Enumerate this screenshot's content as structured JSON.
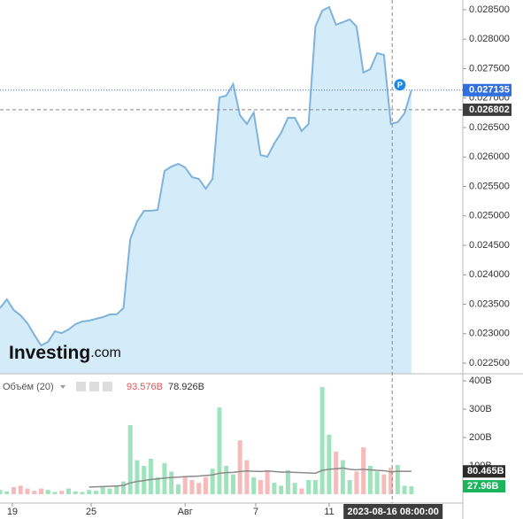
{
  "chart_data": [
    {
      "type": "area",
      "x": [
        0,
        1,
        2,
        3,
        4,
        5,
        6,
        7,
        8,
        9,
        10,
        11,
        12,
        13,
        14,
        15,
        16,
        17,
        18,
        19,
        20,
        21,
        22,
        23,
        24,
        25,
        26,
        27,
        28,
        29,
        30,
        31,
        32,
        33,
        34,
        35,
        36,
        37,
        38,
        39,
        40,
        41,
        42,
        43,
        44,
        45,
        46,
        47,
        48,
        49,
        50,
        51,
        52,
        53,
        54,
        55,
        56,
        57,
        58,
        59,
        60
      ],
      "values": [
        0.023432,
        0.023583,
        0.023402,
        0.023312,
        0.023177,
        0.022981,
        0.022801,
        0.022861,
        0.023041,
        0.023011,
        0.023071,
        0.023162,
        0.023207,
        0.023222,
        0.023252,
        0.023282,
        0.023327,
        0.023327,
        0.023432,
        0.024605,
        0.024906,
        0.025086,
        0.025086,
        0.025101,
        0.025763,
        0.025838,
        0.025883,
        0.025823,
        0.025658,
        0.025628,
        0.025462,
        0.025628,
        0.027011,
        0.027041,
        0.027237,
        0.02671,
        0.02656,
        0.026756,
        0.026034,
        0.026004,
        0.026229,
        0.02641,
        0.026665,
        0.026665,
        0.02644,
        0.02656,
        0.028214,
        0.028485,
        0.028545,
        0.028244,
        0.028289,
        0.028335,
        0.028214,
        0.027432,
        0.027492,
        0.027763,
        0.027733,
        0.02656,
        0.02659,
        0.026741,
        0.027135
      ],
      "value_labels": [
        null,
        null,
        null,
        null,
        null,
        null,
        null,
        null,
        null,
        null,
        null,
        null,
        null,
        null,
        null,
        null,
        null,
        null,
        null,
        null,
        null,
        null,
        null,
        null,
        null,
        null,
        null,
        null,
        null,
        null,
        null,
        null,
        null,
        null,
        null,
        null,
        null,
        null,
        null,
        null,
        null,
        null,
        null,
        null,
        null,
        null,
        null,
        null,
        null,
        null,
        null,
        null,
        null,
        null,
        null,
        null,
        null,
        null,
        null,
        null,
        "0.027135"
      ],
      "color": "#7fb3dc",
      "fill": "#d4ebf9",
      "label_color": "#2f6fe0",
      "xlim": [
        0,
        67.5
      ],
      "ylim": [
        0.02232,
        0.028665
      ],
      "yticks": [
        {
          "value": 0.0225,
          "label": "0.022500"
        },
        {
          "value": 0.023,
          "label": "0.023000"
        },
        {
          "value": 0.0235,
          "label": "0.023500"
        },
        {
          "value": 0.024,
          "label": "0.024000"
        },
        {
          "value": 0.0245,
          "label": "0.024500"
        },
        {
          "value": 0.025,
          "label": "0.025000"
        },
        {
          "value": 0.0255,
          "label": "0.025500"
        },
        {
          "value": 0.026,
          "label": "0.026000"
        },
        {
          "value": 0.0265,
          "label": "0.026500"
        },
        {
          "value": 0.027,
          "label": "0.027000"
        },
        {
          "value": 0.0275,
          "label": "0.027500"
        },
        {
          "value": 0.028,
          "label": "0.028000"
        },
        {
          "value": 0.0285,
          "label": "0.028500"
        }
      ],
      "xticks": [
        {
          "value": 1.8,
          "label": "19"
        },
        {
          "value": 13.3,
          "label": "25"
        },
        {
          "value": 27,
          "label": "Авг"
        },
        {
          "value": 37.3,
          "label": "7"
        },
        {
          "value": 48,
          "label": "11"
        }
      ],
      "crosshair": {
        "x": {
          "value": 57.2,
          "label": "2023-08-16 08:00:00"
        },
        "y": {
          "value": 0.026802,
          "label": "0.026802"
        }
      },
      "watermark": {
        "brand": "Investing",
        "suffix": ".com"
      },
      "marker": "P",
      "grid": false
    },
    {
      "type": "bar",
      "title": "Объём (20)",
      "ylim": [
        0,
        425
      ],
      "yticks": [
        {
          "value": 100,
          "label": "100B"
        },
        {
          "value": 200,
          "label": "200B"
        },
        {
          "value": 300,
          "label": "300B"
        },
        {
          "value": 400,
          "label": "400B"
        }
      ],
      "series": [
        {
          "type": "bar",
          "up_color": "#9fe3bd",
          "down_color": "#f7baba",
          "legend_color": "#e05555",
          "values": [
            15,
            10,
            25,
            30,
            20,
            12,
            20,
            15,
            8,
            12,
            20,
            10,
            8,
            15,
            12,
            25,
            20,
            30,
            45,
            244,
            120,
            100,
            125,
            60,
            110,
            80,
            35,
            60,
            50,
            40,
            60,
            90,
            306,
            100,
            70,
            190,
            120,
            60,
            50,
            85,
            40,
            30,
            85,
            40,
            20,
            50,
            50,
            378,
            210,
            150,
            120,
            50,
            80,
            165,
            100,
            80,
            70,
            93.576,
            103,
            30,
            27.96
          ],
          "value_labels": [
            null,
            null,
            null,
            null,
            null,
            null,
            null,
            null,
            null,
            null,
            null,
            null,
            null,
            null,
            null,
            null,
            null,
            null,
            null,
            null,
            null,
            null,
            null,
            null,
            null,
            null,
            null,
            null,
            null,
            null,
            null,
            null,
            null,
            null,
            null,
            null,
            null,
            null,
            null,
            null,
            null,
            null,
            null,
            null,
            null,
            null,
            null,
            null,
            null,
            null,
            null,
            null,
            null,
            null,
            null,
            null,
            null,
            "93.576B",
            null,
            null,
            "27.96B"
          ]
        },
        {
          "type": "line",
          "color": "#8a8a8a",
          "values": [
            null,
            null,
            null,
            null,
            null,
            null,
            null,
            null,
            null,
            null,
            null,
            null,
            null,
            25,
            26,
            27,
            28,
            29,
            31,
            40,
            45,
            48,
            52,
            54,
            57,
            59,
            60,
            62,
            63,
            64,
            66,
            68,
            74,
            76,
            77,
            80,
            82,
            81,
            80,
            82,
            80,
            78,
            78,
            77,
            76,
            75,
            74,
            84,
            88,
            90,
            92,
            88,
            86,
            88,
            86,
            84,
            83,
            78.926,
            81,
            81,
            80.465
          ],
          "value_labels": [
            null,
            null,
            null,
            null,
            null,
            null,
            null,
            null,
            null,
            null,
            null,
            null,
            null,
            null,
            null,
            null,
            null,
            null,
            null,
            null,
            null,
            null,
            null,
            null,
            null,
            null,
            null,
            null,
            null,
            null,
            null,
            null,
            null,
            null,
            null,
            null,
            null,
            null,
            null,
            null,
            null,
            null,
            null,
            null,
            null,
            null,
            null,
            null,
            null,
            null,
            null,
            null,
            null,
            null,
            null,
            null,
            null,
            "78.926B",
            null,
            null,
            "80.465B"
          ]
        }
      ]
    }
  ]
}
